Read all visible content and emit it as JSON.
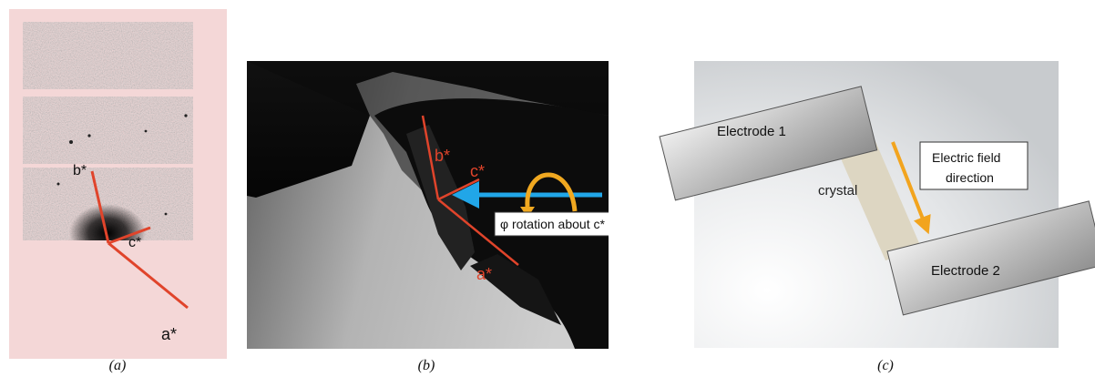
{
  "figure": {
    "panel_a": {
      "caption": "(a)",
      "axes": {
        "b": "b*",
        "c": "c*",
        "a": "a*"
      },
      "colors": {
        "background": "#f4d7d7",
        "axis": "#e0442b"
      }
    },
    "panel_b": {
      "caption": "(b)",
      "axes": {
        "b": "b*",
        "c": "c*",
        "a": "a*"
      },
      "rotation_label": "φ rotation about c*",
      "colors": {
        "axis": "#e0442b",
        "beam_arrow": "#21a6e8",
        "rotation_arrow": "#f0a820"
      }
    },
    "panel_c": {
      "caption": "(c)",
      "electrode_1": "Electrode 1",
      "electrode_2": "Electrode 2",
      "crystal": "crystal",
      "field_label_line1": "Electric field",
      "field_label_line2": "direction",
      "colors": {
        "field_arrow": "#f2a41e",
        "crystal": "#ddd6c2"
      }
    }
  }
}
